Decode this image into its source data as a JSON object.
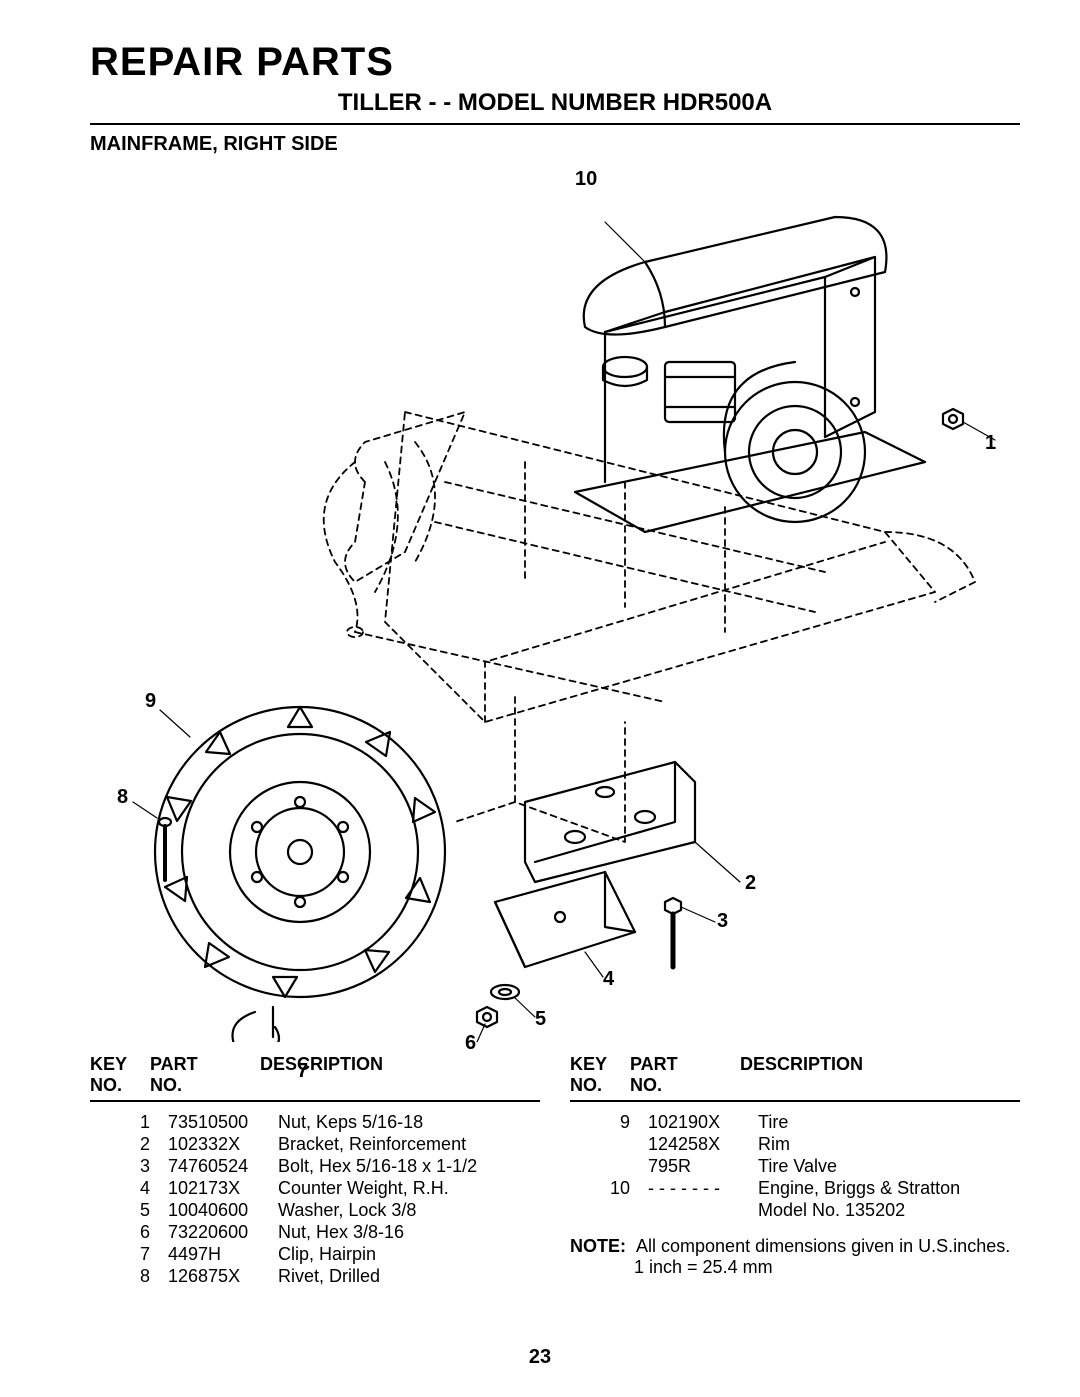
{
  "header": {
    "title": "REPAIR PARTS",
    "subtitle": "TILLER - - MODEL NUMBER HDR500A",
    "section": "MAINFRAME, RIGHT SIDE"
  },
  "callouts": {
    "c1": "1",
    "c2": "2",
    "c3": "3",
    "c4": "4",
    "c5": "5",
    "c6": "6",
    "c7": "7",
    "c8": "8",
    "c9": "9",
    "c10": "10"
  },
  "table_left": {
    "head": {
      "key": "KEY",
      "keysub": "NO.",
      "part": "PART",
      "partsub": "NO.",
      "desc": "DESCRIPTION"
    },
    "rows": [
      {
        "key": "1",
        "part": "73510500",
        "desc": "Nut, Keps  5/16-18"
      },
      {
        "key": "2",
        "part": "102332X",
        "desc": "Bracket, Reinforcement"
      },
      {
        "key": "3",
        "part": "74760524",
        "desc": "Bolt, Hex  5/16-18 x 1-1/2"
      },
      {
        "key": "4",
        "part": "102173X",
        "desc": "Counter Weight, R.H."
      },
      {
        "key": "5",
        "part": "10040600",
        "desc": "Washer, Lock  3/8"
      },
      {
        "key": "6",
        "part": "73220600",
        "desc": "Nut, Hex  3/8-16"
      },
      {
        "key": "7",
        "part": "4497H",
        "desc": "Clip, Hairpin"
      },
      {
        "key": "8",
        "part": "126875X",
        "desc": "Rivet, Drilled"
      }
    ]
  },
  "table_right": {
    "head": {
      "key": "KEY",
      "keysub": "NO.",
      "part": "PART",
      "partsub": "NO.",
      "desc": "DESCRIPTION"
    },
    "rows": [
      {
        "key": "9",
        "part": "102190X",
        "desc": "Tire"
      },
      {
        "key": "",
        "part": "124258X",
        "desc": "Rim"
      },
      {
        "key": "",
        "part": "795R",
        "desc": "Tire Valve"
      },
      {
        "key": "10",
        "part": "- - - - - - -",
        "desc": "Engine, Briggs & Stratton"
      },
      {
        "key": "",
        "part": "",
        "desc": "Model No. 135202"
      }
    ]
  },
  "note": {
    "label": "NOTE:",
    "line1": "All component dimensions given in U.S.inches.",
    "line2": "1 inch = 25.4 mm"
  },
  "page_number": "23",
  "style": {
    "background": "#ffffff",
    "text_color": "#000000",
    "line_color": "#000000",
    "dash": "6,5",
    "stroke_width_main": 2.2,
    "stroke_width_light": 1.6,
    "font_sizes_pt": {
      "title": 30,
      "subtitle": 18,
      "section": 15,
      "table_head": 13,
      "table_body": 13,
      "note": 13,
      "callout": 15
    }
  }
}
